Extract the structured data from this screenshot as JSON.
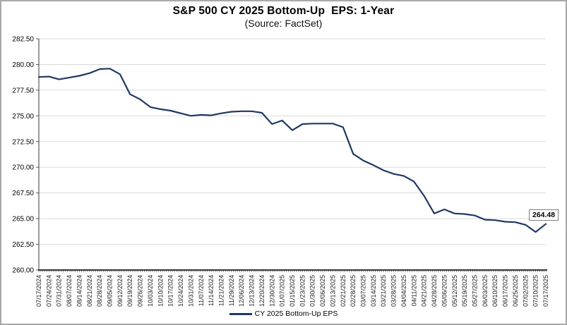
{
  "chart_data": {
    "type": "line",
    "title": "S&P 500 CY 2025 Bottom-Up  EPS: 1-Year",
    "subtitle": "(Source: FactSet)",
    "x": [
      "07/17/2024",
      "07/24/2024",
      "07/31/2024",
      "08/07/2024",
      "08/14/2024",
      "08/21/2024",
      "08/28/2024",
      "09/05/2024",
      "09/12/2024",
      "09/19/2024",
      "09/26/2024",
      "10/03/2024",
      "10/10/2024",
      "10/17/2024",
      "10/24/2024",
      "10/31/2024",
      "11/07/2024",
      "11/14/2024",
      "11/21/2024",
      "11/29/2024",
      "12/06/2024",
      "12/13/2024",
      "12/20/2024",
      "12/30/2024",
      "01/07/2025",
      "01/15/2025",
      "01/23/2025",
      "01/30/2025",
      "02/06/2025",
      "02/13/2025",
      "02/21/2025",
      "02/28/2025",
      "03/07/2025",
      "03/14/2025",
      "03/21/2025",
      "03/28/2025",
      "04/04/2025",
      "04/11/2025",
      "04/21/2025",
      "04/28/2025",
      "05/06/2025",
      "05/12/2025",
      "05/19/2025",
      "05/27/2025",
      "06/03/2025",
      "06/10/2025",
      "06/17/2025",
      "06/25/2025",
      "07/02/2025",
      "07/10/2025",
      "07/17/2025"
    ],
    "series": [
      {
        "name": "CY 2025 Bottom-Up EPS",
        "color": "#1F3864",
        "values": [
          278.78,
          278.82,
          278.55,
          278.72,
          278.9,
          279.15,
          279.55,
          279.6,
          279.05,
          277.1,
          276.6,
          275.85,
          275.65,
          275.5,
          275.25,
          275.0,
          275.1,
          275.05,
          275.25,
          275.4,
          275.45,
          275.45,
          275.3,
          274.2,
          274.55,
          273.6,
          274.2,
          274.25,
          274.25,
          274.25,
          273.9,
          271.3,
          270.65,
          270.2,
          269.7,
          269.35,
          269.15,
          268.6,
          267.2,
          265.5,
          265.9,
          265.5,
          265.45,
          265.3,
          264.9,
          264.85,
          264.7,
          264.65,
          264.4,
          263.7,
          264.48
        ]
      }
    ],
    "ylim": [
      260.0,
      282.5
    ],
    "yticks": [
      "260.00",
      "262.50",
      "265.00",
      "267.50",
      "270.00",
      "272.50",
      "275.00",
      "277.50",
      "280.00",
      "282.50"
    ],
    "xlabel": "",
    "ylabel": "",
    "grid": true,
    "legend_position": "bottom-center",
    "end_label": "264.48",
    "colors": {
      "line": "#1F3864",
      "gridline": "#d9d9d9",
      "x_axis": "#1a1a1a",
      "y_axis": "#595959",
      "tick": "#4d4d4d",
      "tick_label": "#1a1a1a"
    }
  }
}
